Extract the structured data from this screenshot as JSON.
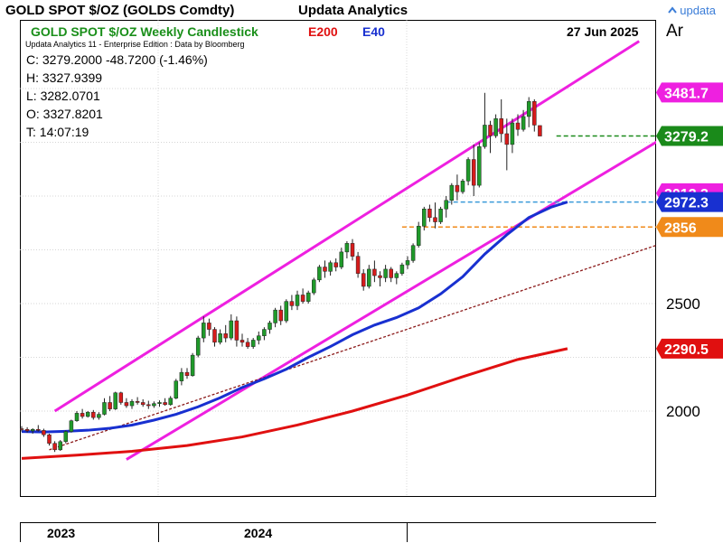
{
  "header": {
    "title": "GOLD SPOT $/OZ (GOLDS Comdty)",
    "app": "Updata Analytics",
    "logo_text": "updata"
  },
  "chart_header": {
    "subtitle": "GOLD SPOT $/OZ Weekly Candlestick",
    "legend_e200": "E200",
    "legend_e40": "E40",
    "date": "27 Jun 2025",
    "edition": "Updata Analytics 11 - Enterprise Edition : Data by Bloomberg",
    "right_header": "Ar"
  },
  "ohlc": {
    "c": "C: 3279.2000  -48.7200 (-1.46%)",
    "h": "H: 3327.9399",
    "l": "L: 3282.0701",
    "o": "O: 3327.8201",
    "t": "T: 14:07:19"
  },
  "colors": {
    "bullish": "#1f9a2a",
    "bearish": "#d61b1b",
    "e200": "#e01010",
    "e40": "#1830d0",
    "channel": "#ee20e0",
    "price_line": "#1a8a1a",
    "level_blue": "#3a9ad9",
    "level_orange": "#f08a1a",
    "trend_dotted": "#8b1a1a"
  },
  "chart_data": {
    "type": "candlestick",
    "title": "GOLD SPOT $/OZ Weekly Candlestick",
    "x_labels": [
      "2023",
      "2024"
    ],
    "y_ticks": [
      2000,
      2500
    ],
    "ylim": [
      1760,
      3720
    ],
    "grid": true,
    "candles": [
      [
        1918,
        1930,
        1905,
        1915
      ],
      [
        1915,
        1925,
        1900,
        1908
      ],
      [
        1908,
        1920,
        1895,
        1915
      ],
      [
        1915,
        1935,
        1905,
        1910
      ],
      [
        1910,
        1918,
        1880,
        1890
      ],
      [
        1890,
        1895,
        1840,
        1850
      ],
      [
        1850,
        1860,
        1810,
        1820
      ],
      [
        1820,
        1865,
        1815,
        1858
      ],
      [
        1858,
        1910,
        1850,
        1905
      ],
      [
        1905,
        1960,
        1900,
        1955
      ],
      [
        1955,
        2000,
        1950,
        1990
      ],
      [
        1990,
        2010,
        1965,
        1975
      ],
      [
        1975,
        2000,
        1970,
        1995
      ],
      [
        1995,
        2005,
        1960,
        1970
      ],
      [
        1970,
        1995,
        1960,
        1985
      ],
      [
        1985,
        2060,
        1980,
        2040
      ],
      [
        2040,
        2070,
        2000,
        2010
      ],
      [
        2010,
        2090,
        2005,
        2085
      ],
      [
        2085,
        2090,
        2030,
        2040
      ],
      [
        2040,
        2060,
        2015,
        2025
      ],
      [
        2025,
        2055,
        2010,
        2045
      ],
      [
        2045,
        2065,
        2030,
        2040
      ],
      [
        2040,
        2055,
        2020,
        2030
      ],
      [
        2030,
        2048,
        2010,
        2025
      ],
      [
        2025,
        2045,
        2015,
        2035
      ],
      [
        2035,
        2050,
        2020,
        2040
      ],
      [
        2040,
        2060,
        2025,
        2030
      ],
      [
        2030,
        2070,
        2025,
        2060
      ],
      [
        2060,
        2150,
        2055,
        2140
      ],
      [
        2140,
        2200,
        2120,
        2180
      ],
      [
        2180,
        2200,
        2150,
        2165
      ],
      [
        2165,
        2270,
        2160,
        2260
      ],
      [
        2260,
        2350,
        2250,
        2340
      ],
      [
        2340,
        2440,
        2320,
        2410
      ],
      [
        2410,
        2430,
        2350,
        2380
      ],
      [
        2380,
        2390,
        2300,
        2320
      ],
      [
        2320,
        2380,
        2310,
        2360
      ],
      [
        2360,
        2400,
        2320,
        2340
      ],
      [
        2340,
        2450,
        2330,
        2420
      ],
      [
        2420,
        2440,
        2300,
        2330
      ],
      [
        2330,
        2360,
        2300,
        2320
      ],
      [
        2320,
        2340,
        2290,
        2300
      ],
      [
        2300,
        2340,
        2290,
        2330
      ],
      [
        2330,
        2370,
        2310,
        2350
      ],
      [
        2350,
        2390,
        2330,
        2380
      ],
      [
        2380,
        2420,
        2360,
        2410
      ],
      [
        2410,
        2480,
        2390,
        2470
      ],
      [
        2470,
        2490,
        2400,
        2420
      ],
      [
        2420,
        2520,
        2410,
        2510
      ],
      [
        2510,
        2540,
        2470,
        2490
      ],
      [
        2490,
        2560,
        2470,
        2540
      ],
      [
        2540,
        2570,
        2500,
        2510
      ],
      [
        2510,
        2560,
        2500,
        2550
      ],
      [
        2550,
        2620,
        2540,
        2610
      ],
      [
        2610,
        2680,
        2600,
        2670
      ],
      [
        2670,
        2700,
        2620,
        2650
      ],
      [
        2650,
        2700,
        2630,
        2690
      ],
      [
        2690,
        2710,
        2650,
        2670
      ],
      [
        2670,
        2760,
        2660,
        2740
      ],
      [
        2740,
        2790,
        2710,
        2780
      ],
      [
        2780,
        2800,
        2700,
        2720
      ],
      [
        2720,
        2740,
        2620,
        2640
      ],
      [
        2640,
        2660,
        2560,
        2580
      ],
      [
        2580,
        2680,
        2570,
        2660
      ],
      [
        2660,
        2700,
        2600,
        2630
      ],
      [
        2630,
        2650,
        2580,
        2620
      ],
      [
        2620,
        2680,
        2600,
        2660
      ],
      [
        2660,
        2670,
        2600,
        2620
      ],
      [
        2620,
        2650,
        2590,
        2640
      ],
      [
        2640,
        2690,
        2630,
        2680
      ],
      [
        2680,
        2720,
        2660,
        2700
      ],
      [
        2700,
        2780,
        2690,
        2770
      ],
      [
        2770,
        2880,
        2760,
        2860
      ],
      [
        2860,
        2950,
        2840,
        2940
      ],
      [
        2940,
        2960,
        2880,
        2900
      ],
      [
        2900,
        2970,
        2850,
        2880
      ],
      [
        2880,
        2950,
        2870,
        2940
      ],
      [
        2940,
        3000,
        2900,
        2980
      ],
      [
        2980,
        3060,
        2960,
        3050
      ],
      [
        3050,
        3100,
        2980,
        3020
      ],
      [
        3020,
        3080,
        3010,
        3070
      ],
      [
        3070,
        3180,
        3050,
        3170
      ],
      [
        3170,
        3240,
        3000,
        3050
      ],
      [
        3050,
        3250,
        3040,
        3230
      ],
      [
        3230,
        3480,
        3220,
        3330
      ],
      [
        3330,
        3350,
        3200,
        3280
      ],
      [
        3280,
        3380,
        3270,
        3360
      ],
      [
        3360,
        3450,
        3250,
        3290
      ],
      [
        3290,
        3360,
        3120,
        3240
      ],
      [
        3240,
        3360,
        3200,
        3340
      ],
      [
        3340,
        3380,
        3280,
        3310
      ],
      [
        3310,
        3400,
        3300,
        3370
      ],
      [
        3370,
        3460,
        3320,
        3440
      ],
      [
        3440,
        3450,
        3300,
        3330
      ],
      [
        3328,
        3328,
        3282,
        3279
      ]
    ],
    "e40": [
      [
        0,
        1905
      ],
      [
        4,
        1903
      ],
      [
        8,
        1906
      ],
      [
        12,
        1911
      ],
      [
        16,
        1920
      ],
      [
        20,
        1935
      ],
      [
        24,
        1958
      ],
      [
        28,
        1985
      ],
      [
        32,
        2020
      ],
      [
        36,
        2062
      ],
      [
        40,
        2110
      ],
      [
        44,
        2150
      ],
      [
        48,
        2195
      ],
      [
        52,
        2250
      ],
      [
        56,
        2300
      ],
      [
        60,
        2355
      ],
      [
        64,
        2400
      ],
      [
        68,
        2435
      ],
      [
        72,
        2480
      ],
      [
        76,
        2545
      ],
      [
        80,
        2625
      ],
      [
        84,
        2730
      ],
      [
        88,
        2820
      ],
      [
        92,
        2900
      ],
      [
        96,
        2948
      ],
      [
        99,
        2972.3
      ]
    ],
    "e200": [
      [
        0,
        1780
      ],
      [
        10,
        1795
      ],
      [
        20,
        1813
      ],
      [
        30,
        1840
      ],
      [
        40,
        1880
      ],
      [
        50,
        1935
      ],
      [
        60,
        2000
      ],
      [
        70,
        2075
      ],
      [
        80,
        2160
      ],
      [
        90,
        2240
      ],
      [
        99,
        2290.5
      ]
    ],
    "channel_upper": [
      [
        6,
        2000
      ],
      [
        112,
        3720
      ]
    ],
    "channel_lower": [
      [
        19,
        1775
      ],
      [
        117,
        3280
      ]
    ],
    "trend_dotted": [
      [
        5,
        1820
      ],
      [
        126,
        2865
      ]
    ],
    "level_close": 3279.2,
    "level_blue": 2972.3,
    "level_orange": 2856,
    "price_tags": [
      {
        "label": "3481.7",
        "value": 3481.7,
        "color": "#ee20e0",
        "text_color": "#ffffff"
      },
      {
        "label": "3279.2",
        "value": 3279.2,
        "color": "#1a8a1a",
        "text_color": "#ffffff"
      },
      {
        "label": "3013.3",
        "value": 3013.3,
        "color": "#ee20e0",
        "text_color": "#ffffff"
      },
      {
        "label": "2972.3",
        "value": 2972.3,
        "color": "#1830d0",
        "text_color": "#ffffff"
      },
      {
        "label": "2856",
        "value": 2856,
        "color": "#f08a1a",
        "text_color": "#ffffff"
      },
      {
        "label": "2290.5",
        "value": 2290.5,
        "color": "#e01010",
        "text_color": "#ffffff"
      }
    ]
  }
}
